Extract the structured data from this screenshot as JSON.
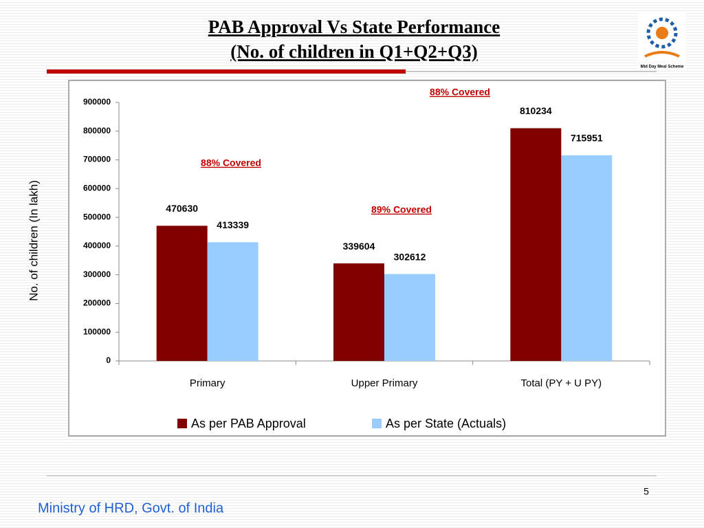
{
  "slide": {
    "title_lines": [
      "PAB Approval  Vs State Performance",
      "(No. of children in Q1+Q2+Q3)"
    ],
    "logo_text": "Mid Day Meal Scheme",
    "page_number": "5",
    "footer": "Ministry of HRD, Govt. of India"
  },
  "chart_data": {
    "type": "bar",
    "ylabel": "No. of children (In lakh)",
    "categories": [
      "Primary",
      "Upper Primary",
      "Total (PY + U PY)"
    ],
    "series": [
      {
        "name": "As per PAB Approval",
        "color": "#800000",
        "values": [
          470630,
          339604,
          810234
        ]
      },
      {
        "name": "As per State (Actuals)",
        "color": "#99ccff",
        "values": [
          413339,
          302612,
          715951
        ]
      }
    ],
    "annotations": [
      "88% Covered",
      "89% Covered",
      "88% Covered"
    ],
    "ylim": [
      0,
      900000
    ],
    "yticks": [
      0,
      100000,
      200000,
      300000,
      400000,
      500000,
      600000,
      700000,
      800000,
      900000
    ],
    "grid": false,
    "legend": "bottom"
  }
}
